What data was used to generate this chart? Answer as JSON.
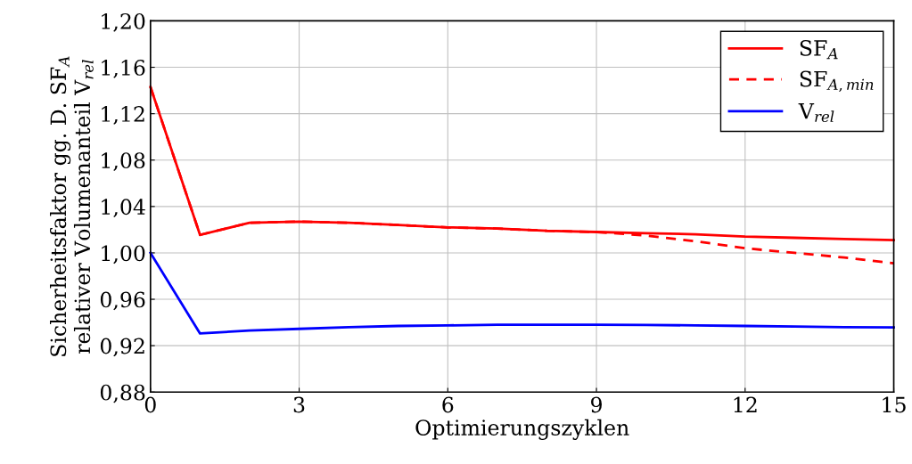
{
  "chart_data": {
    "type": "line",
    "xlabel": "Optimierungszyklen",
    "ylabel": "Sicherheitsfaktor gg. D. SF$_{A}$\nrelativer Volumenanteil V$_{rel}$",
    "x": [
      0,
      1,
      2,
      3,
      4,
      5,
      6,
      7,
      8,
      9,
      10,
      11,
      12,
      13,
      14,
      15
    ],
    "series": [
      {
        "name": "SF$_{A}$",
        "color": "#ff0000",
        "line_style": "solid",
        "values": [
          1.143,
          1.0155,
          1.026,
          1.027,
          1.026,
          1.024,
          1.022,
          1.021,
          1.019,
          1.018,
          1.017,
          1.016,
          1.014,
          1.013,
          1.012,
          1.011
        ]
      },
      {
        "name": "SF$_{A,min}$",
        "color": "#ff0000",
        "line_style": "dashed",
        "values": [
          1.143,
          1.0155,
          1.026,
          1.027,
          1.026,
          1.024,
          1.022,
          1.021,
          1.019,
          1.018,
          1.015,
          1.01,
          1.004,
          1.0,
          0.996,
          0.991
        ]
      },
      {
        "name": "V$_{rel}$",
        "color": "#0000ff",
        "line_style": "solid",
        "values": [
          1.0,
          0.9305,
          0.933,
          0.9345,
          0.936,
          0.937,
          0.9375,
          0.938,
          0.938,
          0.938,
          0.9378,
          0.9375,
          0.937,
          0.9365,
          0.936,
          0.9358
        ]
      }
    ],
    "xlim": [
      0,
      15
    ],
    "xticks": [
      0,
      3,
      6,
      9,
      12,
      15
    ],
    "ylim": [
      0.88,
      1.2
    ],
    "yticks": [
      {
        "value": 0.88,
        "label": "0,88"
      },
      {
        "value": 0.92,
        "label": "0,92"
      },
      {
        "value": 0.96,
        "label": "0,96"
      },
      {
        "value": 1.0,
        "label": "1,00"
      },
      {
        "value": 1.04,
        "label": "1,04"
      },
      {
        "value": 1.08,
        "label": "1,08"
      },
      {
        "value": 1.12,
        "label": "1,12"
      },
      {
        "value": 1.16,
        "label": "1,16"
      },
      {
        "value": 1.2,
        "label": "1,20"
      }
    ],
    "grid": true,
    "legend": "top right",
    "marker": "none"
  }
}
